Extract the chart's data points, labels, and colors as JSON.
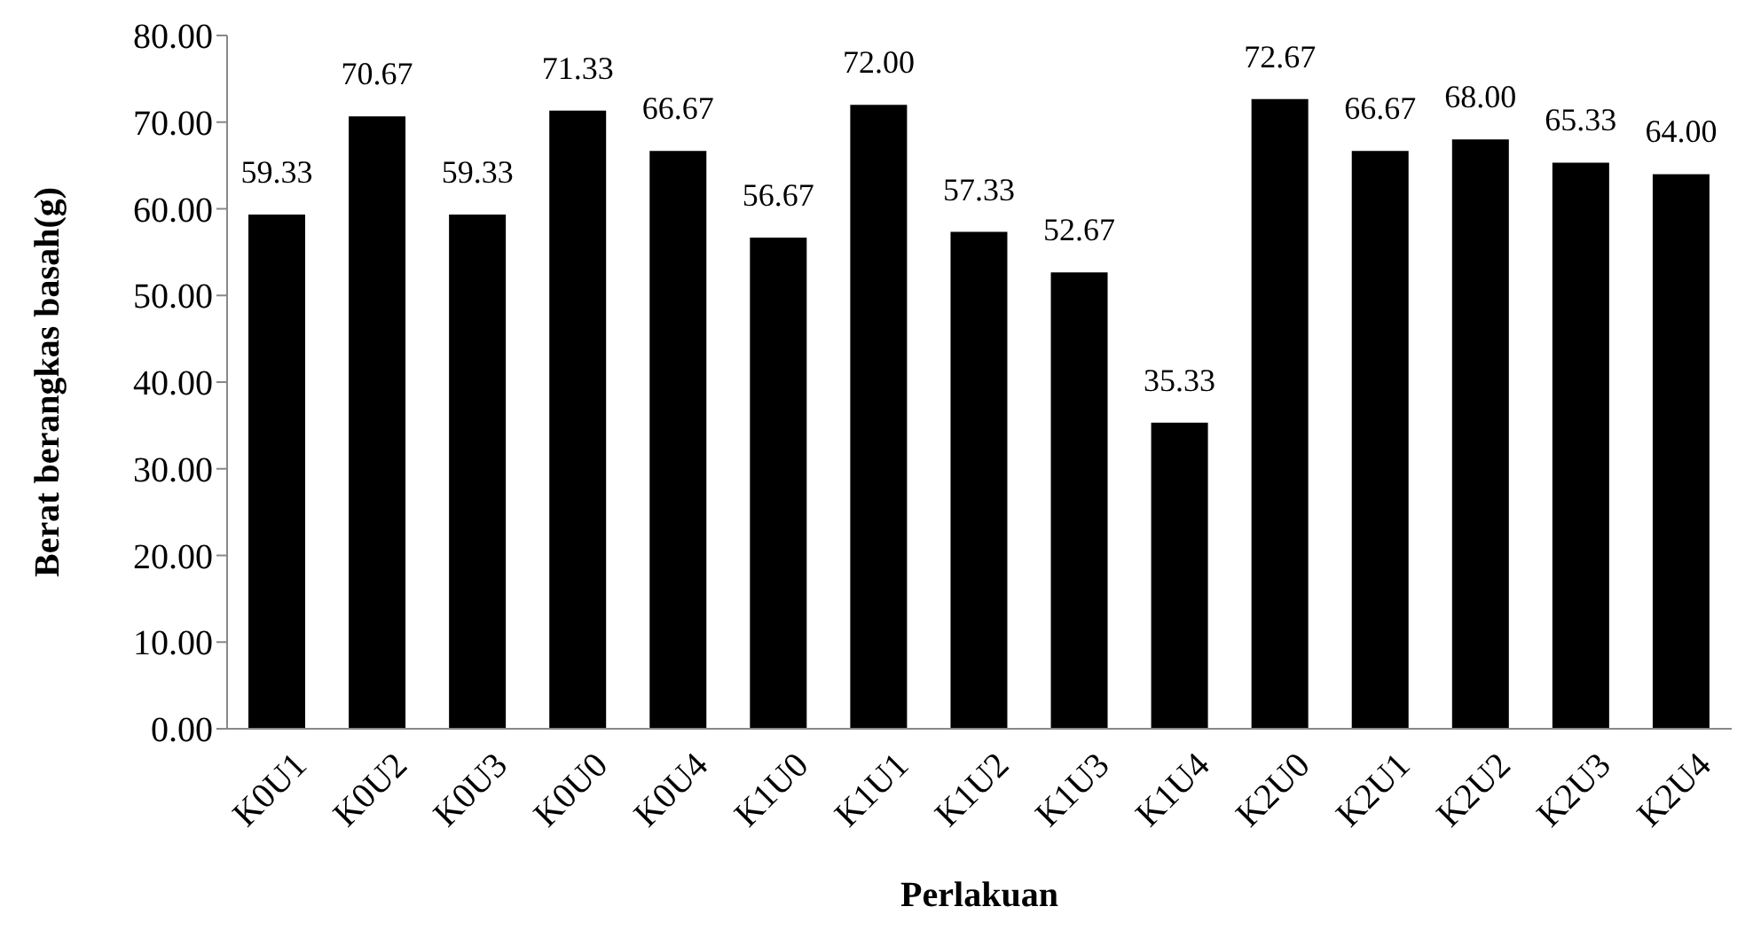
{
  "chart_data": {
    "type": "bar",
    "xlabel": "Perlakuan",
    "ylabel": "Berat berangkas basah(g)",
    "categories": [
      "K0U1",
      "K0U2",
      "K0U3",
      "K0U0",
      "K0U4",
      "K1U0",
      "K1U1",
      "K1U2",
      "K1U3",
      "K1U4",
      "K2U0",
      "K2U1",
      "K2U2",
      "K2U3",
      "K2U4"
    ],
    "values": [
      59.33,
      70.67,
      59.33,
      71.33,
      66.67,
      56.67,
      72.0,
      57.33,
      52.67,
      35.33,
      72.67,
      66.67,
      68.0,
      65.33,
      64.0
    ],
    "value_labels": [
      "59.33",
      "70.67",
      "59.33",
      "71.33",
      "66.67",
      "56.67",
      "72.00",
      "57.33",
      "52.67",
      "35.33",
      "72.67",
      "66.67",
      "68.00",
      "65.33",
      "64.00"
    ],
    "color": "#000000",
    "ylim": [
      0,
      80
    ],
    "yticks": [
      {
        "value": 0,
        "label": "0.00"
      },
      {
        "value": 10,
        "label": "10.00"
      },
      {
        "value": 20,
        "label": "20.00"
      },
      {
        "value": 30,
        "label": "30.00"
      },
      {
        "value": 40,
        "label": "40.00"
      },
      {
        "value": 50,
        "label": "50.00"
      },
      {
        "value": 60,
        "label": "60.00"
      },
      {
        "value": 70,
        "label": "70.00"
      },
      {
        "value": 80,
        "label": "80.00"
      }
    ],
    "grid": false,
    "legend": false
  }
}
